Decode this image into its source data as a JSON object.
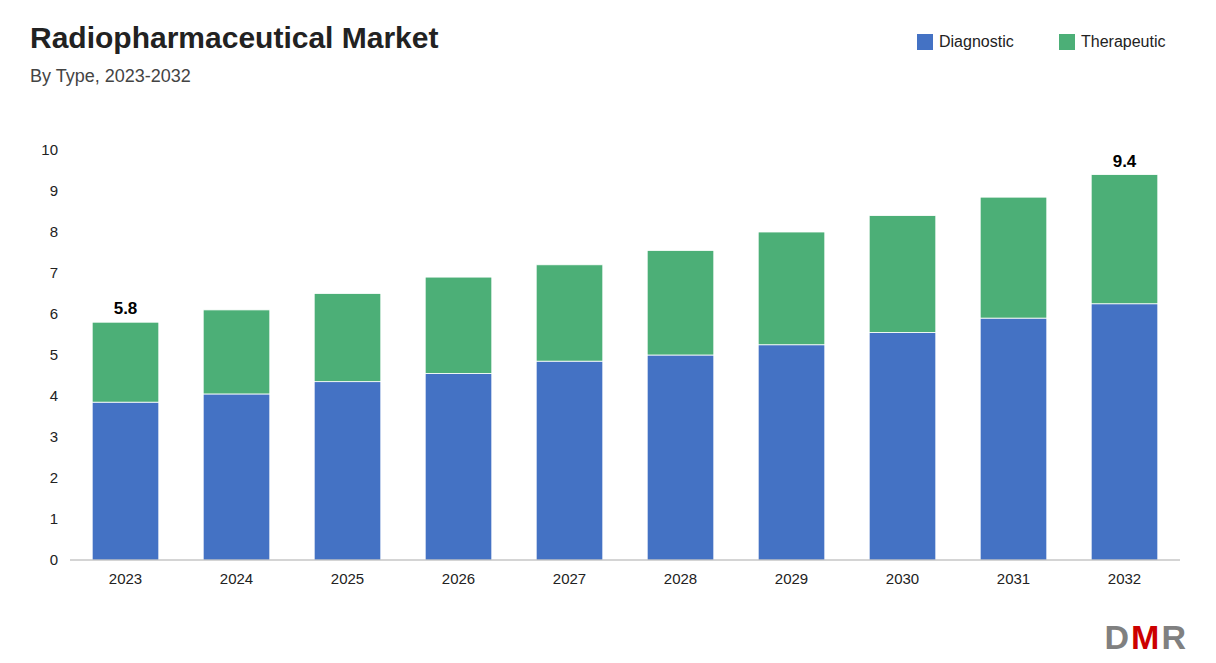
{
  "chart_data": {
    "type": "bar",
    "stacked": true,
    "title": "Radiopharmaceutical Market",
    "subtitle": "By Type, 2023-2032",
    "categories": [
      "2023",
      "2024",
      "2025",
      "2026",
      "2027",
      "2028",
      "2029",
      "2030",
      "2031",
      "2032"
    ],
    "series": [
      {
        "name": "Diagnostic",
        "color": "#4472C4",
        "values": [
          3.85,
          4.05,
          4.35,
          4.55,
          4.85,
          5.0,
          5.25,
          5.55,
          5.9,
          6.25
        ]
      },
      {
        "name": "Therapeutic",
        "color": "#4CAF77",
        "values": [
          1.95,
          2.05,
          2.15,
          2.35,
          2.35,
          2.55,
          2.75,
          2.85,
          2.95,
          3.15
        ]
      }
    ],
    "annotations": [
      {
        "x": "2023",
        "y": 5.8,
        "text": "5.8"
      },
      {
        "x": "2032",
        "y": 9.4,
        "text": "9.4"
      }
    ],
    "watermark": [
      {
        "text": "D",
        "color": "#808080"
      },
      {
        "text": "M",
        "color": "#CC0000"
      },
      {
        "text": "R",
        "color": "#808080"
      }
    ],
    "ylim": [
      0,
      10
    ],
    "yticks": [
      0,
      1,
      2,
      3,
      4,
      5,
      6,
      7,
      8,
      9,
      10
    ],
    "grid": false,
    "legend": "upper right"
  }
}
